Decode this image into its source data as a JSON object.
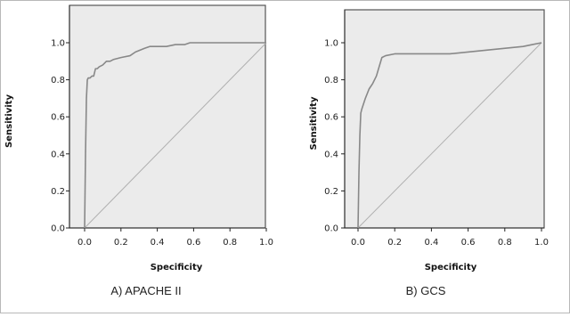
{
  "chart_data": [
    {
      "type": "line",
      "caption": "A) APACHE II",
      "xlabel": "Specificity",
      "ylabel": "Sensitivity",
      "xlim": [
        0,
        1
      ],
      "ylim": [
        0,
        1
      ],
      "xticks": [
        "0.0",
        "0.2",
        "0.4",
        "0.6",
        "0.8",
        "1.0"
      ],
      "yticks": [
        "0.0",
        "0.2",
        "0.4",
        "0.6",
        "0.8",
        "1.0"
      ],
      "grid": false,
      "colors": {
        "plot_bg": "#ebebeb",
        "curve": "#888888",
        "reference": "#b0b0b0"
      },
      "series": [
        {
          "x": [
            0,
            0.005,
            0.01,
            0.015,
            0.02,
            0.03,
            0.04,
            0.05,
            0.06,
            0.07,
            0.08,
            0.1,
            0.12,
            0.14,
            0.16,
            0.2,
            0.25,
            0.28,
            0.33,
            0.36,
            0.4,
            0.45,
            0.5,
            0.55,
            0.58,
            0.6,
            1.0
          ],
          "y": [
            0,
            0.4,
            0.7,
            0.8,
            0.81,
            0.81,
            0.82,
            0.82,
            0.86,
            0.86,
            0.87,
            0.88,
            0.9,
            0.9,
            0.91,
            0.92,
            0.93,
            0.95,
            0.97,
            0.98,
            0.98,
            0.98,
            0.99,
            0.99,
            1.0,
            1.0,
            1.0
          ]
        },
        {
          "x": [
            0,
            1
          ],
          "y": [
            0,
            1
          ]
        }
      ]
    },
    {
      "type": "line",
      "caption": "B) GCS",
      "xlabel": "Specificity",
      "ylabel": "Sensitivity",
      "xlim": [
        0,
        1
      ],
      "ylim": [
        0,
        1
      ],
      "xticks": [
        "0.0",
        "0.2",
        "0.4",
        "0.6",
        "0.8",
        "1.0"
      ],
      "yticks": [
        "0.0",
        "0.2",
        "0.4",
        "0.6",
        "0.8",
        "1.0"
      ],
      "grid": false,
      "colors": {
        "plot_bg": "#ebebeb",
        "curve": "#888888",
        "reference": "#b0b0b0"
      },
      "series": [
        {
          "x": [
            0,
            0.005,
            0.01,
            0.015,
            0.02,
            0.04,
            0.06,
            0.08,
            0.1,
            0.13,
            0.15,
            0.2,
            0.3,
            0.5,
            0.7,
            0.9,
            0.95,
            1.0
          ],
          "y": [
            0,
            0.3,
            0.5,
            0.62,
            0.64,
            0.7,
            0.75,
            0.78,
            0.82,
            0.92,
            0.93,
            0.94,
            0.94,
            0.94,
            0.96,
            0.98,
            0.99,
            1.0
          ]
        },
        {
          "x": [
            0,
            1
          ],
          "y": [
            0,
            1
          ]
        }
      ]
    }
  ]
}
